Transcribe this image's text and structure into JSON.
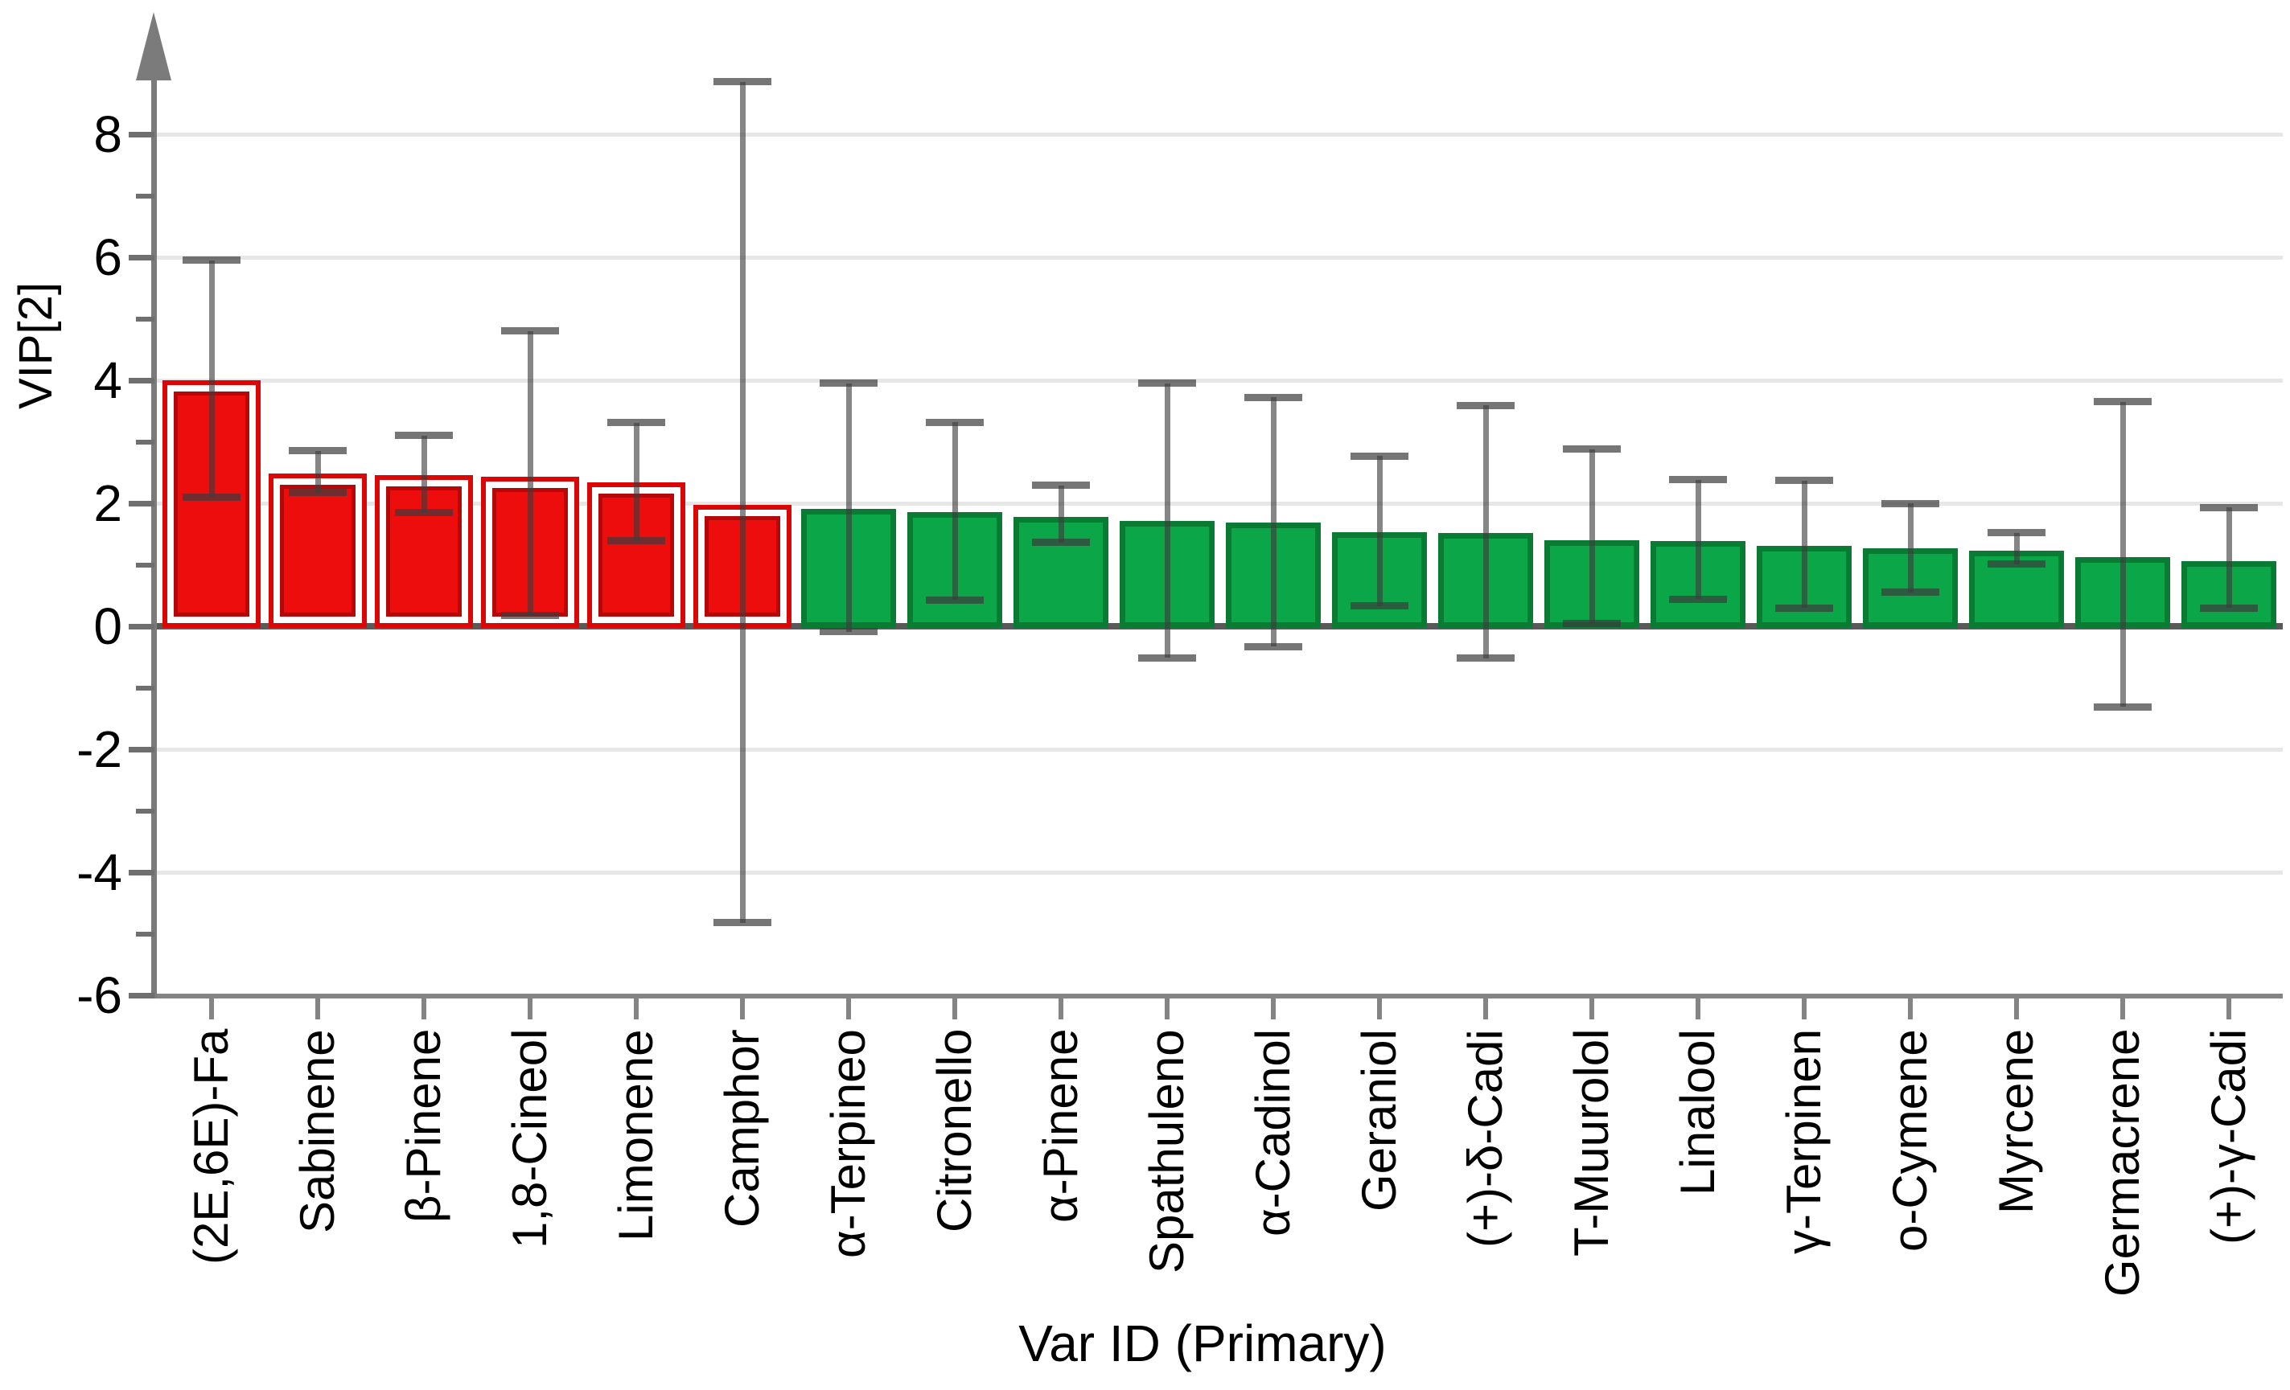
{
  "colors": {
    "bar_selected_fill": "#EE0D0D",
    "bar_selected_border": "#DB0707",
    "bar_selected_inner_line": "#B50808",
    "bar_normal_fill": "#0AA648",
    "bar_normal_border": "#097B33",
    "error_line": "rgba(60,60,60,0.62)",
    "error_cap": "rgba(60,60,60,0.70)",
    "axis_gray": "#7B7B7B",
    "axis_gray_light": "#848484",
    "zero_line_gray": "#595959",
    "tick_gray": "#6F6F6F",
    "gridline_gray": "#E7E7E7"
  },
  "chart_data": {
    "type": "bar",
    "title": "",
    "xlabel": "Var ID (Primary)",
    "ylabel": "VIP[2]",
    "ylim": [
      -6,
      9.3
    ],
    "yticks_major": [
      8,
      6,
      4,
      2,
      0,
      -2,
      -4,
      -6
    ],
    "yticks_minor": [
      7,
      5,
      3,
      1,
      -1,
      -3,
      -5
    ],
    "grid": "horizontal-major",
    "legend": "none",
    "error_bars": true,
    "bar_groups": {
      "selected": "red double-outlined bars (first 6, VIP selected)",
      "normal": "green bars"
    },
    "bars": [
      {
        "label": "(2E,6E)-Fa",
        "value": 4.0,
        "err_low": 2.1,
        "err_high": 5.95,
        "group": "selected"
      },
      {
        "label": "Sabinene",
        "value": 2.48,
        "err_low": 2.17,
        "err_high": 2.85,
        "group": "selected"
      },
      {
        "label": "β-Pinene",
        "value": 2.46,
        "err_low": 1.85,
        "err_high": 3.1,
        "group": "selected"
      },
      {
        "label": "1,8-Cineol",
        "value": 2.43,
        "err_low": 0.17,
        "err_high": 4.8,
        "group": "selected"
      },
      {
        "label": "Limonene",
        "value": 2.34,
        "err_low": 1.39,
        "err_high": 3.31,
        "group": "selected"
      },
      {
        "label": "Camphor",
        "value": 1.97,
        "err_low": -4.82,
        "err_high": 8.85,
        "group": "selected"
      },
      {
        "label": "α-Terpineo",
        "value": 1.91,
        "err_low": -0.09,
        "err_high": 3.95,
        "group": "normal"
      },
      {
        "label": "Citronello",
        "value": 1.86,
        "err_low": 0.43,
        "err_high": 3.32,
        "group": "normal"
      },
      {
        "label": "α-Pinene",
        "value": 1.78,
        "err_low": 1.36,
        "err_high": 2.29,
        "group": "normal"
      },
      {
        "label": "Spathuleno",
        "value": 1.71,
        "err_low": -0.51,
        "err_high": 3.95,
        "group": "normal"
      },
      {
        "label": "α-Cadinol",
        "value": 1.69,
        "err_low": -0.33,
        "err_high": 3.72,
        "group": "normal"
      },
      {
        "label": "Geraniol",
        "value": 1.53,
        "err_low": 0.33,
        "err_high": 2.77,
        "group": "normal"
      },
      {
        "label": "(+)-δ-Cadi",
        "value": 1.51,
        "err_low": -0.52,
        "err_high": 3.59,
        "group": "normal"
      },
      {
        "label": "T-Muurolol",
        "value": 1.4,
        "err_low": 0.04,
        "err_high": 2.88,
        "group": "normal"
      },
      {
        "label": "Linalool",
        "value": 1.39,
        "err_low": 0.44,
        "err_high": 2.38,
        "group": "normal"
      },
      {
        "label": "γ-Terpinen",
        "value": 1.31,
        "err_low": 0.3,
        "err_high": 2.37,
        "group": "normal"
      },
      {
        "label": "o-Cymene",
        "value": 1.27,
        "err_low": 0.55,
        "err_high": 2.0,
        "group": "normal"
      },
      {
        "label": "Myrcene",
        "value": 1.23,
        "err_low": 1.01,
        "err_high": 1.52,
        "group": "normal"
      },
      {
        "label": "Germacrene",
        "value": 1.12,
        "err_low": -1.31,
        "err_high": 3.65,
        "group": "normal"
      },
      {
        "label": "(+)-γ-Cadi",
        "value": 1.06,
        "err_low": 0.3,
        "err_high": 1.93,
        "group": "normal"
      }
    ]
  }
}
